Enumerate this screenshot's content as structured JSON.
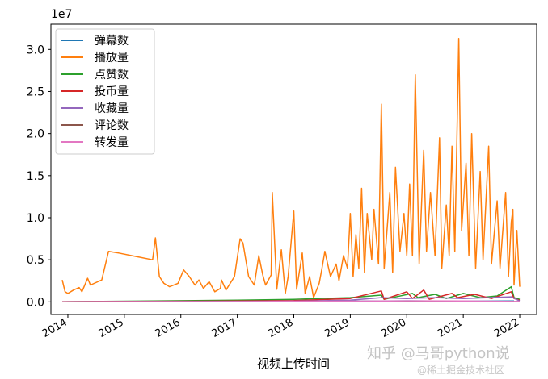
{
  "chart_data": {
    "type": "line",
    "title": "",
    "xlabel": "视频上传时间",
    "ylabel": "",
    "y_offset_text": "1e7",
    "ylim": [
      -0.15,
      3.3
    ],
    "xlim": [
      2013.7,
      2022.3
    ],
    "y_ticks": [
      0.0,
      0.5,
      1.0,
      1.5,
      2.0,
      2.5,
      3.0
    ],
    "y_tick_labels": [
      "0.0",
      "0.5",
      "1.0",
      "1.5",
      "2.0",
      "2.5",
      "3.0"
    ],
    "x_ticks": [
      2014,
      2015,
      2016,
      2017,
      2018,
      2019,
      2020,
      2021,
      2022
    ],
    "x_tick_labels": [
      "2014",
      "2015",
      "2016",
      "2017",
      "2018",
      "2019",
      "2020",
      "2021",
      "2022"
    ],
    "grid": false,
    "legend_position": "upper-left",
    "series": [
      {
        "name": "弹幕数",
        "color": "#1f77b4",
        "points": [
          [
            2013.9,
            0.001
          ],
          [
            2016.0,
            0.002
          ],
          [
            2018.0,
            0.004
          ],
          [
            2019.5,
            0.01
          ],
          [
            2020.0,
            0.012
          ],
          [
            2021.0,
            0.008
          ],
          [
            2021.9,
            0.01
          ]
        ]
      },
      {
        "name": "播放量",
        "color": "#ff7f0e",
        "points": [
          [
            2013.9,
            0.26
          ],
          [
            2013.95,
            0.12
          ],
          [
            2014.0,
            0.1
          ],
          [
            2014.1,
            0.14
          ],
          [
            2014.2,
            0.17
          ],
          [
            2014.25,
            0.12
          ],
          [
            2014.35,
            0.28
          ],
          [
            2014.4,
            0.2
          ],
          [
            2014.6,
            0.26
          ],
          [
            2014.72,
            0.6
          ],
          [
            2014.9,
            0.58
          ],
          [
            2015.2,
            0.54
          ],
          [
            2015.5,
            0.5
          ],
          [
            2015.55,
            0.76
          ],
          [
            2015.62,
            0.3
          ],
          [
            2015.7,
            0.22
          ],
          [
            2015.8,
            0.18
          ],
          [
            2015.95,
            0.22
          ],
          [
            2016.05,
            0.38
          ],
          [
            2016.15,
            0.3
          ],
          [
            2016.25,
            0.2
          ],
          [
            2016.32,
            0.26
          ],
          [
            2016.4,
            0.16
          ],
          [
            2016.5,
            0.24
          ],
          [
            2016.6,
            0.12
          ],
          [
            2016.7,
            0.16
          ],
          [
            2016.72,
            0.26
          ],
          [
            2016.8,
            0.14
          ],
          [
            2016.95,
            0.3
          ],
          [
            2017.05,
            0.75
          ],
          [
            2017.1,
            0.7
          ],
          [
            2017.2,
            0.3
          ],
          [
            2017.3,
            0.2
          ],
          [
            2017.38,
            0.55
          ],
          [
            2017.45,
            0.32
          ],
          [
            2017.5,
            0.2
          ],
          [
            2017.6,
            0.32
          ],
          [
            2017.62,
            1.3
          ],
          [
            2017.7,
            0.15
          ],
          [
            2017.78,
            0.62
          ],
          [
            2017.85,
            0.1
          ],
          [
            2017.9,
            0.3
          ],
          [
            2018.0,
            1.08
          ],
          [
            2018.05,
            0.15
          ],
          [
            2018.15,
            0.58
          ],
          [
            2018.2,
            0.1
          ],
          [
            2018.28,
            0.3
          ],
          [
            2018.35,
            0.05
          ],
          [
            2018.45,
            0.22
          ],
          [
            2018.5,
            0.4
          ],
          [
            2018.55,
            0.6
          ],
          [
            2018.65,
            0.3
          ],
          [
            2018.75,
            0.45
          ],
          [
            2018.8,
            0.25
          ],
          [
            2018.88,
            0.55
          ],
          [
            2018.95,
            0.4
          ],
          [
            2019.0,
            1.05
          ],
          [
            2019.05,
            0.3
          ],
          [
            2019.1,
            0.8
          ],
          [
            2019.15,
            0.4
          ],
          [
            2019.2,
            1.35
          ],
          [
            2019.25,
            0.35
          ],
          [
            2019.3,
            1.05
          ],
          [
            2019.38,
            0.5
          ],
          [
            2019.42,
            1.1
          ],
          [
            2019.5,
            0.45
          ],
          [
            2019.55,
            2.35
          ],
          [
            2019.6,
            0.4
          ],
          [
            2019.7,
            1.3
          ],
          [
            2019.75,
            0.35
          ],
          [
            2019.8,
            1.6
          ],
          [
            2019.88,
            0.6
          ],
          [
            2019.95,
            1.05
          ],
          [
            2020.0,
            0.55
          ],
          [
            2020.05,
            1.4
          ],
          [
            2020.1,
            0.55
          ],
          [
            2020.15,
            2.7
          ],
          [
            2020.22,
            0.45
          ],
          [
            2020.3,
            1.8
          ],
          [
            2020.35,
            0.6
          ],
          [
            2020.42,
            1.3
          ],
          [
            2020.5,
            0.55
          ],
          [
            2020.58,
            1.95
          ],
          [
            2020.62,
            0.4
          ],
          [
            2020.7,
            1.15
          ],
          [
            2020.75,
            0.55
          ],
          [
            2020.8,
            1.85
          ],
          [
            2020.85,
            0.6
          ],
          [
            2020.92,
            3.13
          ],
          [
            2020.97,
            0.85
          ],
          [
            2021.05,
            1.65
          ],
          [
            2021.1,
            0.55
          ],
          [
            2021.15,
            2.0
          ],
          [
            2021.22,
            0.4
          ],
          [
            2021.3,
            1.55
          ],
          [
            2021.35,
            0.5
          ],
          [
            2021.45,
            1.85
          ],
          [
            2021.5,
            0.45
          ],
          [
            2021.6,
            1.2
          ],
          [
            2021.65,
            0.4
          ],
          [
            2021.75,
            1.3
          ],
          [
            2021.8,
            0.3
          ],
          [
            2021.85,
            0.95
          ],
          [
            2021.88,
            1.1
          ],
          [
            2021.9,
            0.2
          ],
          [
            2021.95,
            0.85
          ],
          [
            2022.0,
            0.18
          ]
        ]
      },
      {
        "name": "点赞数",
        "color": "#2ca02c",
        "points": [
          [
            2013.9,
            0.002
          ],
          [
            2015.5,
            0.01
          ],
          [
            2017.0,
            0.02
          ],
          [
            2018.0,
            0.03
          ],
          [
            2019.0,
            0.05
          ],
          [
            2019.55,
            0.08
          ],
          [
            2019.6,
            0.03
          ],
          [
            2020.1,
            0.1
          ],
          [
            2020.2,
            0.05
          ],
          [
            2020.5,
            0.09
          ],
          [
            2020.7,
            0.04
          ],
          [
            2021.0,
            0.1
          ],
          [
            2021.3,
            0.05
          ],
          [
            2021.6,
            0.07
          ],
          [
            2021.85,
            0.18
          ],
          [
            2021.9,
            0.05
          ],
          [
            2022.0,
            0.03
          ]
        ]
      },
      {
        "name": "投币量",
        "color": "#d62728",
        "points": [
          [
            2013.9,
            0.002
          ],
          [
            2017.0,
            0.01
          ],
          [
            2018.0,
            0.015
          ],
          [
            2019.0,
            0.04
          ],
          [
            2019.55,
            0.13
          ],
          [
            2019.6,
            0.03
          ],
          [
            2020.0,
            0.12
          ],
          [
            2020.1,
            0.04
          ],
          [
            2020.3,
            0.14
          ],
          [
            2020.4,
            0.03
          ],
          [
            2020.8,
            0.1
          ],
          [
            2020.9,
            0.05
          ],
          [
            2021.2,
            0.09
          ],
          [
            2021.5,
            0.04
          ],
          [
            2021.85,
            0.12
          ],
          [
            2021.9,
            0.04
          ],
          [
            2022.0,
            0.02
          ]
        ]
      },
      {
        "name": "收藏量",
        "color": "#9467bd",
        "points": [
          [
            2013.9,
            0.001
          ],
          [
            2017.0,
            0.005
          ],
          [
            2018.0,
            0.008
          ],
          [
            2019.0,
            0.02
          ],
          [
            2019.55,
            0.05
          ],
          [
            2020.0,
            0.04
          ],
          [
            2020.5,
            0.05
          ],
          [
            2021.0,
            0.04
          ],
          [
            2021.85,
            0.06
          ],
          [
            2022.0,
            0.01
          ]
        ]
      },
      {
        "name": "评论数",
        "color": "#8c564b",
        "points": [
          [
            2013.9,
            0.001
          ],
          [
            2017.0,
            0.003
          ],
          [
            2019.0,
            0.006
          ],
          [
            2020.0,
            0.008
          ],
          [
            2021.0,
            0.006
          ],
          [
            2022.0,
            0.003
          ]
        ]
      },
      {
        "name": "转发量",
        "color": "#e377c2",
        "points": [
          [
            2013.9,
            0.001
          ],
          [
            2017.0,
            0.004
          ],
          [
            2019.0,
            0.008
          ],
          [
            2020.0,
            0.012
          ],
          [
            2021.0,
            0.01
          ],
          [
            2022.0,
            0.004
          ]
        ]
      }
    ]
  },
  "watermark": {
    "line1": "知乎 @马哥python说",
    "line2": "@稀土掘金技术社区"
  }
}
